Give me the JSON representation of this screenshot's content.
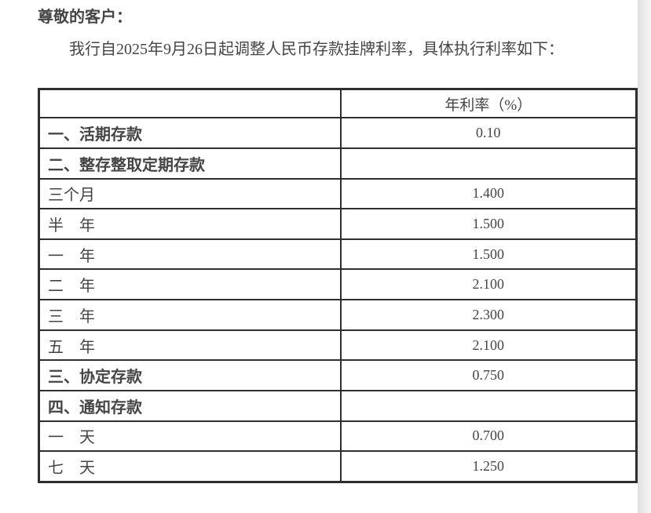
{
  "page": {
    "greeting": "尊敬的客户：",
    "intro": "我行自2025年9月26日起调整人民币存款挂牌利率，具体执行利率如下："
  },
  "table": {
    "header": {
      "label": "",
      "rate": "年利率（%）"
    },
    "rows": [
      {
        "label": "一、活期存款",
        "rate": "0.10",
        "bold": true
      },
      {
        "label": "二、整存整取定期存款",
        "rate": "",
        "bold": true
      },
      {
        "label": "三个月",
        "rate": "1.400",
        "bold": false
      },
      {
        "label": "半　年",
        "rate": "1.500",
        "bold": false
      },
      {
        "label": "一　年",
        "rate": "1.500",
        "bold": false
      },
      {
        "label": "二　年",
        "rate": "2.100",
        "bold": false
      },
      {
        "label": "三　年",
        "rate": "2.300",
        "bold": false
      },
      {
        "label": "五　年",
        "rate": "2.100",
        "bold": false
      },
      {
        "label": "三、协定存款",
        "rate": "0.750",
        "bold": true
      },
      {
        "label": "四、通知存款",
        "rate": "",
        "bold": true
      },
      {
        "label": "一　天",
        "rate": "0.700",
        "bold": false
      },
      {
        "label": "七　天",
        "rate": "1.250",
        "bold": false
      }
    ]
  },
  "colors": {
    "text": "#454545",
    "table_border": "#2e2e2e",
    "page_background": "#ffffff",
    "edge_shadow": "#e0e0e0"
  }
}
